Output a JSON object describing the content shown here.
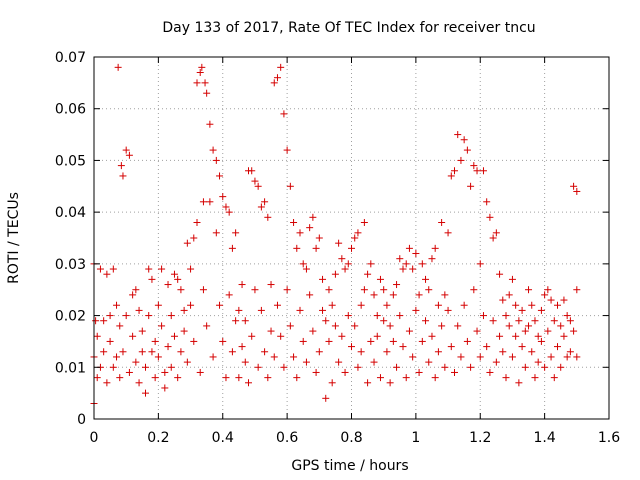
{
  "chart_data": {
    "type": "scatter",
    "title": "Day 133 of 2017, Rate Of TEC Index for receiver tncu",
    "xlabel": "GPS time / hours",
    "ylabel": "ROTI / TECUs",
    "xlim": [
      0,
      1.6
    ],
    "ylim": [
      0,
      0.07
    ],
    "xticks": [
      "0",
      "0.2",
      "0.4",
      "0.6",
      "0.8",
      "1",
      "1.2",
      "1.4",
      "1.6"
    ],
    "yticks": [
      "0",
      "0.01",
      "0.02",
      "0.03",
      "0.04",
      "0.05",
      "0.06",
      "0.07"
    ],
    "grid": true,
    "marker": "+",
    "marker_color": "#d40000",
    "x_range_of_points": [
      0,
      1.5
    ],
    "series": [
      {
        "points": [
          [
            0.0,
            0.03
          ],
          [
            0.0,
            0.012
          ],
          [
            0.0,
            0.003
          ],
          [
            0.005,
            0.019
          ],
          [
            0.01,
            0.016
          ],
          [
            0.01,
            0.008
          ],
          [
            0.02,
            0.029
          ],
          [
            0.02,
            0.01
          ],
          [
            0.03,
            0.019
          ],
          [
            0.03,
            0.013
          ],
          [
            0.04,
            0.028
          ],
          [
            0.04,
            0.007
          ],
          [
            0.05,
            0.02
          ],
          [
            0.05,
            0.015
          ],
          [
            0.06,
            0.029
          ],
          [
            0.06,
            0.01
          ],
          [
            0.07,
            0.022
          ],
          [
            0.07,
            0.012
          ],
          [
            0.075,
            0.068
          ],
          [
            0.08,
            0.018
          ],
          [
            0.08,
            0.008
          ],
          [
            0.085,
            0.049
          ],
          [
            0.09,
            0.047
          ],
          [
            0.09,
            0.013
          ],
          [
            0.1,
            0.052
          ],
          [
            0.1,
            0.02
          ],
          [
            0.11,
            0.051
          ],
          [
            0.11,
            0.009
          ],
          [
            0.12,
            0.024
          ],
          [
            0.12,
            0.016
          ],
          [
            0.13,
            0.025
          ],
          [
            0.13,
            0.011
          ],
          [
            0.14,
            0.021
          ],
          [
            0.14,
            0.007
          ],
          [
            0.15,
            0.017
          ],
          [
            0.15,
            0.013
          ],
          [
            0.16,
            0.01
          ],
          [
            0.16,
            0.005
          ],
          [
            0.17,
            0.029
          ],
          [
            0.17,
            0.02
          ],
          [
            0.18,
            0.027
          ],
          [
            0.18,
            0.013
          ],
          [
            0.19,
            0.015
          ],
          [
            0.19,
            0.008
          ],
          [
            0.2,
            0.022
          ],
          [
            0.2,
            0.012
          ],
          [
            0.21,
            0.029
          ],
          [
            0.21,
            0.018
          ],
          [
            0.22,
            0.009
          ],
          [
            0.22,
            0.006
          ],
          [
            0.23,
            0.026
          ],
          [
            0.23,
            0.014
          ],
          [
            0.24,
            0.02
          ],
          [
            0.24,
            0.01
          ],
          [
            0.25,
            0.028
          ],
          [
            0.25,
            0.016
          ],
          [
            0.26,
            0.027
          ],
          [
            0.26,
            0.008
          ],
          [
            0.27,
            0.025
          ],
          [
            0.27,
            0.013
          ],
          [
            0.28,
            0.021
          ],
          [
            0.28,
            0.017
          ],
          [
            0.29,
            0.034
          ],
          [
            0.29,
            0.011
          ],
          [
            0.3,
            0.029
          ],
          [
            0.3,
            0.022
          ],
          [
            0.31,
            0.035
          ],
          [
            0.31,
            0.015
          ],
          [
            0.32,
            0.038
          ],
          [
            0.32,
            0.065
          ],
          [
            0.33,
            0.067
          ],
          [
            0.33,
            0.009
          ],
          [
            0.335,
            0.068
          ],
          [
            0.34,
            0.042
          ],
          [
            0.34,
            0.025
          ],
          [
            0.345,
            0.065
          ],
          [
            0.35,
            0.063
          ],
          [
            0.35,
            0.018
          ],
          [
            0.36,
            0.057
          ],
          [
            0.36,
            0.042
          ],
          [
            0.37,
            0.052
          ],
          [
            0.37,
            0.012
          ],
          [
            0.38,
            0.05
          ],
          [
            0.38,
            0.036
          ],
          [
            0.39,
            0.047
          ],
          [
            0.39,
            0.022
          ],
          [
            0.4,
            0.043
          ],
          [
            0.4,
            0.015
          ],
          [
            0.41,
            0.041
          ],
          [
            0.41,
            0.008
          ],
          [
            0.42,
            0.04
          ],
          [
            0.42,
            0.024
          ],
          [
            0.43,
            0.033
          ],
          [
            0.43,
            0.013
          ],
          [
            0.44,
            0.036
          ],
          [
            0.44,
            0.019
          ],
          [
            0.45,
            0.021
          ],
          [
            0.45,
            0.008
          ],
          [
            0.46,
            0.026
          ],
          [
            0.46,
            0.014
          ],
          [
            0.47,
            0.019
          ],
          [
            0.47,
            0.011
          ],
          [
            0.48,
            0.048
          ],
          [
            0.48,
            0.007
          ],
          [
            0.49,
            0.048
          ],
          [
            0.49,
            0.016
          ],
          [
            0.5,
            0.046
          ],
          [
            0.5,
            0.025
          ],
          [
            0.51,
            0.045
          ],
          [
            0.51,
            0.01
          ],
          [
            0.52,
            0.041
          ],
          [
            0.52,
            0.021
          ],
          [
            0.53,
            0.042
          ],
          [
            0.53,
            0.013
          ],
          [
            0.54,
            0.039
          ],
          [
            0.54,
            0.008
          ],
          [
            0.55,
            0.026
          ],
          [
            0.55,
            0.017
          ],
          [
            0.56,
            0.065
          ],
          [
            0.56,
            0.012
          ],
          [
            0.57,
            0.066
          ],
          [
            0.57,
            0.022
          ],
          [
            0.58,
            0.068
          ],
          [
            0.58,
            0.016
          ],
          [
            0.59,
            0.059
          ],
          [
            0.59,
            0.01
          ],
          [
            0.6,
            0.052
          ],
          [
            0.6,
            0.025
          ],
          [
            0.61,
            0.045
          ],
          [
            0.61,
            0.018
          ],
          [
            0.62,
            0.038
          ],
          [
            0.62,
            0.012
          ],
          [
            0.63,
            0.033
          ],
          [
            0.63,
            0.008
          ],
          [
            0.64,
            0.036
          ],
          [
            0.64,
            0.021
          ],
          [
            0.65,
            0.03
          ],
          [
            0.65,
            0.015
          ],
          [
            0.66,
            0.029
          ],
          [
            0.66,
            0.011
          ],
          [
            0.67,
            0.037
          ],
          [
            0.67,
            0.024
          ],
          [
            0.68,
            0.039
          ],
          [
            0.68,
            0.017
          ],
          [
            0.69,
            0.033
          ],
          [
            0.69,
            0.009
          ],
          [
            0.7,
            0.035
          ],
          [
            0.7,
            0.013
          ],
          [
            0.71,
            0.027
          ],
          [
            0.71,
            0.021
          ],
          [
            0.72,
            0.019
          ],
          [
            0.72,
            0.004
          ],
          [
            0.73,
            0.025
          ],
          [
            0.73,
            0.015
          ],
          [
            0.74,
            0.022
          ],
          [
            0.74,
            0.007
          ],
          [
            0.75,
            0.028
          ],
          [
            0.75,
            0.018
          ],
          [
            0.76,
            0.034
          ],
          [
            0.76,
            0.011
          ],
          [
            0.77,
            0.031
          ],
          [
            0.77,
            0.016
          ],
          [
            0.78,
            0.029
          ],
          [
            0.78,
            0.009
          ],
          [
            0.79,
            0.03
          ],
          [
            0.79,
            0.02
          ],
          [
            0.8,
            0.033
          ],
          [
            0.8,
            0.014
          ],
          [
            0.81,
            0.035
          ],
          [
            0.81,
            0.018
          ],
          [
            0.82,
            0.036
          ],
          [
            0.82,
            0.01
          ],
          [
            0.83,
            0.022
          ],
          [
            0.83,
            0.013
          ],
          [
            0.84,
            0.038
          ],
          [
            0.84,
            0.025
          ],
          [
            0.85,
            0.028
          ],
          [
            0.85,
            0.007
          ],
          [
            0.86,
            0.03
          ],
          [
            0.86,
            0.015
          ],
          [
            0.87,
            0.024
          ],
          [
            0.87,
            0.011
          ],
          [
            0.88,
            0.02
          ],
          [
            0.88,
            0.016
          ],
          [
            0.89,
            0.027
          ],
          [
            0.89,
            0.008
          ],
          [
            0.9,
            0.025
          ],
          [
            0.9,
            0.019
          ],
          [
            0.91,
            0.022
          ],
          [
            0.91,
            0.013
          ],
          [
            0.92,
            0.018
          ],
          [
            0.92,
            0.007
          ],
          [
            0.93,
            0.024
          ],
          [
            0.93,
            0.015
          ],
          [
            0.94,
            0.026
          ],
          [
            0.94,
            0.01
          ],
          [
            0.95,
            0.031
          ],
          [
            0.95,
            0.02
          ],
          [
            0.96,
            0.029
          ],
          [
            0.96,
            0.014
          ],
          [
            0.97,
            0.03
          ],
          [
            0.97,
            0.008
          ],
          [
            0.98,
            0.033
          ],
          [
            0.98,
            0.017
          ],
          [
            0.99,
            0.029
          ],
          [
            0.99,
            0.012
          ],
          [
            1.0,
            0.032
          ],
          [
            1.0,
            0.021
          ],
          [
            1.01,
            0.024
          ],
          [
            1.01,
            0.009
          ],
          [
            1.02,
            0.03
          ],
          [
            1.02,
            0.015
          ],
          [
            1.03,
            0.027
          ],
          [
            1.03,
            0.019
          ],
          [
            1.04,
            0.025
          ],
          [
            1.04,
            0.011
          ],
          [
            1.05,
            0.031
          ],
          [
            1.05,
            0.016
          ],
          [
            1.06,
            0.033
          ],
          [
            1.06,
            0.008
          ],
          [
            1.07,
            0.022
          ],
          [
            1.07,
            0.013
          ],
          [
            1.08,
            0.038
          ],
          [
            1.08,
            0.018
          ],
          [
            1.09,
            0.024
          ],
          [
            1.09,
            0.01
          ],
          [
            1.1,
            0.036
          ],
          [
            1.1,
            0.021
          ],
          [
            1.11,
            0.047
          ],
          [
            1.11,
            0.014
          ],
          [
            1.12,
            0.048
          ],
          [
            1.12,
            0.009
          ],
          [
            1.13,
            0.055
          ],
          [
            1.13,
            0.018
          ],
          [
            1.14,
            0.05
          ],
          [
            1.14,
            0.012
          ],
          [
            1.15,
            0.054
          ],
          [
            1.15,
            0.022
          ],
          [
            1.16,
            0.052
          ],
          [
            1.16,
            0.015
          ],
          [
            1.17,
            0.045
          ],
          [
            1.17,
            0.01
          ],
          [
            1.18,
            0.049
          ],
          [
            1.18,
            0.025
          ],
          [
            1.19,
            0.048
          ],
          [
            1.19,
            0.017
          ],
          [
            1.2,
            0.03
          ],
          [
            1.2,
            0.012
          ],
          [
            1.21,
            0.048
          ],
          [
            1.21,
            0.02
          ],
          [
            1.22,
            0.042
          ],
          [
            1.22,
            0.014
          ],
          [
            1.23,
            0.039
          ],
          [
            1.23,
            0.009
          ],
          [
            1.24,
            0.035
          ],
          [
            1.24,
            0.019
          ],
          [
            1.25,
            0.036
          ],
          [
            1.25,
            0.011
          ],
          [
            1.26,
            0.028
          ],
          [
            1.26,
            0.016
          ],
          [
            1.27,
            0.023
          ],
          [
            1.27,
            0.013
          ],
          [
            1.28,
            0.02
          ],
          [
            1.28,
            0.008
          ],
          [
            1.29,
            0.024
          ],
          [
            1.29,
            0.018
          ],
          [
            1.3,
            0.027
          ],
          [
            1.3,
            0.012
          ],
          [
            1.31,
            0.022
          ],
          [
            1.31,
            0.016
          ],
          [
            1.32,
            0.019
          ],
          [
            1.32,
            0.007
          ],
          [
            1.33,
            0.021
          ],
          [
            1.33,
            0.014
          ],
          [
            1.34,
            0.017
          ],
          [
            1.34,
            0.01
          ],
          [
            1.35,
            0.025
          ],
          [
            1.35,
            0.018
          ],
          [
            1.36,
            0.022
          ],
          [
            1.36,
            0.013
          ],
          [
            1.37,
            0.019
          ],
          [
            1.37,
            0.008
          ],
          [
            1.38,
            0.016
          ],
          [
            1.38,
            0.011
          ],
          [
            1.39,
            0.021
          ],
          [
            1.39,
            0.015
          ],
          [
            1.4,
            0.024
          ],
          [
            1.4,
            0.01
          ],
          [
            1.41,
            0.025
          ],
          [
            1.41,
            0.017
          ],
          [
            1.42,
            0.023
          ],
          [
            1.42,
            0.012
          ],
          [
            1.43,
            0.019
          ],
          [
            1.43,
            0.008
          ],
          [
            1.44,
            0.022
          ],
          [
            1.44,
            0.014
          ],
          [
            1.45,
            0.018
          ],
          [
            1.45,
            0.01
          ],
          [
            1.46,
            0.023
          ],
          [
            1.46,
            0.016
          ],
          [
            1.47,
            0.02
          ],
          [
            1.47,
            0.012
          ],
          [
            1.48,
            0.019
          ],
          [
            1.48,
            0.013
          ],
          [
            1.49,
            0.045
          ],
          [
            1.49,
            0.017
          ],
          [
            1.5,
            0.044
          ],
          [
            1.5,
            0.025
          ],
          [
            1.5,
            0.012
          ]
        ]
      }
    ]
  }
}
